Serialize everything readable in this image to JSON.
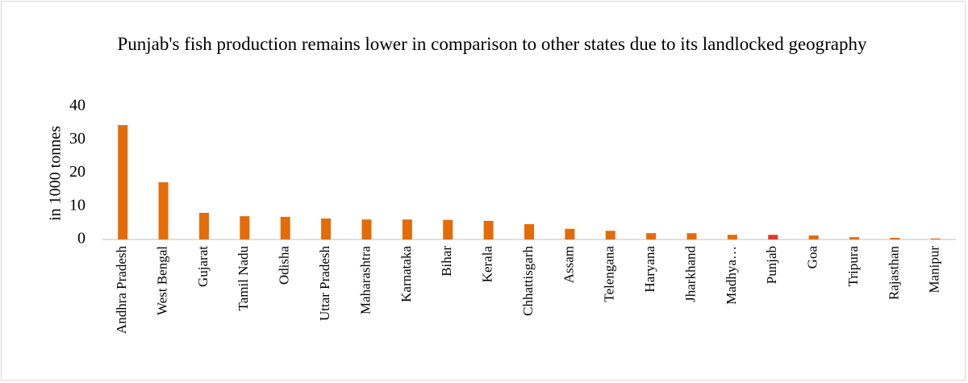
{
  "chart_data": {
    "type": "bar",
    "title": "Punjab's fish production remains lower in comparison to other states due to its landlocked geography",
    "y_label": "in 1000 tonnes",
    "categories": [
      "Andhra Pradesh",
      "West Bengal",
      "Gujarat",
      "Tamil Nadu",
      "Odisha",
      "Uttar Pradesh",
      "Maharashtra",
      "Karnataka",
      "Bihar",
      "Kerala",
      "Chhattisgarh",
      "Assam",
      "Telengana",
      "Haryana",
      "Jharkhand",
      "Madhya…",
      "Punjab",
      "Goa",
      "Tripura",
      "Rajasthan",
      "Manipur"
    ],
    "values": [
      34.4,
      17.2,
      8.0,
      7.0,
      6.8,
      6.3,
      6.0,
      6.0,
      5.9,
      5.6,
      4.6,
      3.2,
      2.6,
      1.9,
      1.9,
      1.4,
      1.4,
      1.2,
      0.7,
      0.5,
      0.3
    ],
    "colors": [
      "#e36c09",
      "#e36c09",
      "#e36c09",
      "#e36c09",
      "#e36c09",
      "#e36c09",
      "#e36c09",
      "#e36c09",
      "#e36c09",
      "#e36c09",
      "#e36c09",
      "#e36c09",
      "#e36c09",
      "#e36c09",
      "#e36c09",
      "#e36c09",
      "#e03a2a",
      "#e36c09",
      "#e36c09",
      "#e36c09",
      "#e36c09"
    ],
    "ylim": [
      0,
      40
    ],
    "yticks": [
      0,
      10,
      20,
      30,
      40
    ],
    "grid": false
  }
}
